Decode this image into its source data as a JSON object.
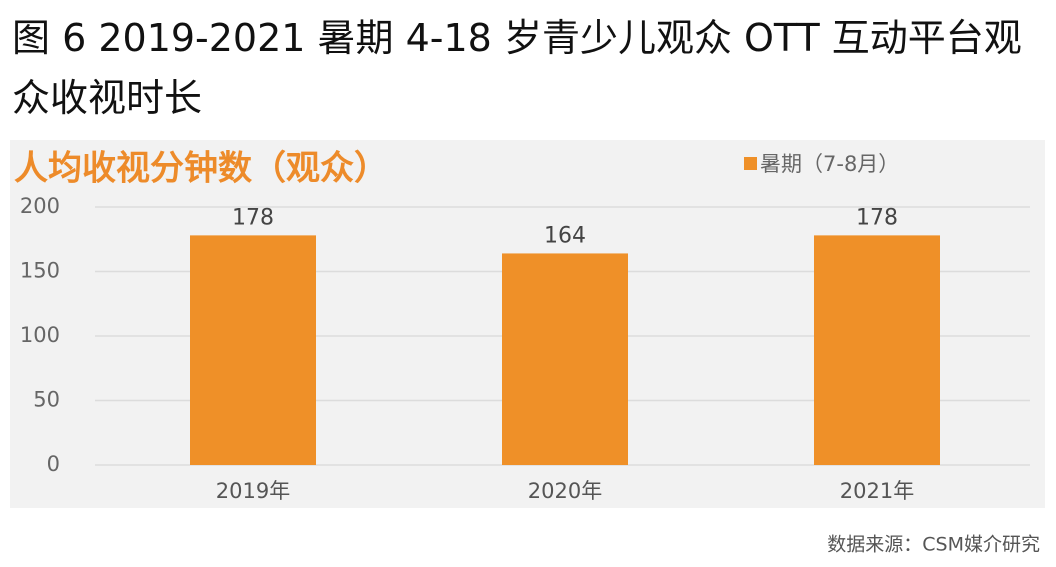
{
  "chart_data": {
    "type": "bar",
    "title": "图 6 2019-2021 暑期 4-18 岁青少儿观众 OTT 互动平台观众收视时长",
    "subtitle": "人均收视分钟数（观众）",
    "categories": [
      "2019年",
      "2020年",
      "2021年"
    ],
    "series": [
      {
        "name": "暑期（7-8月）",
        "color": "#ef9028",
        "values": [
          178,
          164,
          178
        ]
      }
    ],
    "ylim": [
      0,
      200
    ],
    "yticks": [
      0,
      50,
      100,
      150,
      200
    ],
    "grid": true,
    "source": "数据来源：CSM媒介研究"
  }
}
